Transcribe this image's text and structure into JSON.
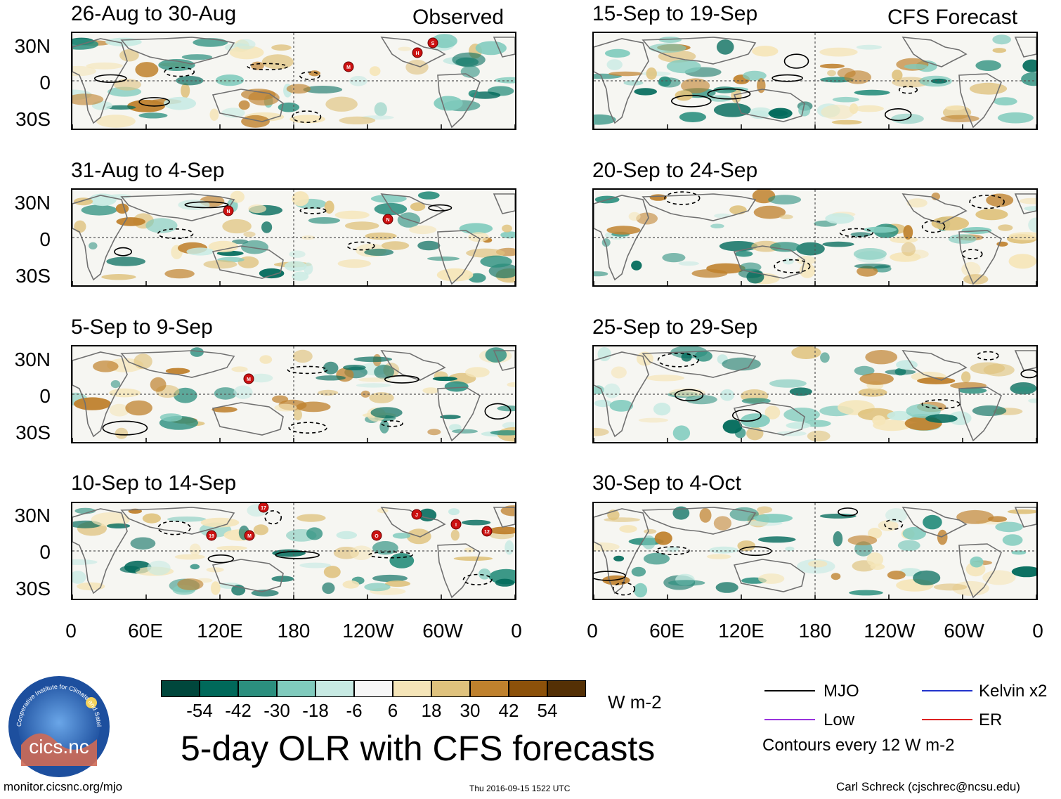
{
  "left_header": "Observed",
  "right_header": "CFS Forecast",
  "panels_left": [
    {
      "title": "26-Aug to 30-Aug"
    },
    {
      "title": "31-Aug to 4-Sep"
    },
    {
      "title": "5-Sep to 9-Sep"
    },
    {
      "title": "10-Sep to 14-Sep"
    }
  ],
  "panels_right": [
    {
      "title": "15-Sep to 19-Sep"
    },
    {
      "title": "20-Sep to 24-Sep"
    },
    {
      "title": "25-Sep to 29-Sep"
    },
    {
      "title": "30-Sep to 4-Oct"
    }
  ],
  "lat_labels": [
    "30N",
    "0",
    "30S"
  ],
  "lon_labels": [
    "0",
    "60E",
    "120E",
    "180",
    "120W",
    "60W",
    "0"
  ],
  "storm_markers": {
    "p0": [
      "M",
      "H",
      "S"
    ],
    "p1": [
      "N",
      "N"
    ],
    "p2": [
      "M"
    ],
    "p3": [
      "17",
      "19",
      "M",
      "O",
      "J",
      "I",
      "12"
    ]
  },
  "colorbar": {
    "colors": [
      "#00473c",
      "#00695a",
      "#2b8f7e",
      "#80cbbd",
      "#c7eae3",
      "#f7f7f7",
      "#f5e5b8",
      "#dfc27d",
      "#bf812d",
      "#8c510a",
      "#543005"
    ],
    "labels": [
      "-54",
      "-42",
      "-30",
      "-18",
      "-6",
      "6",
      "18",
      "30",
      "42",
      "54"
    ],
    "unit": "W m-2"
  },
  "legend": {
    "items": [
      {
        "label": "MJO",
        "color": "#000000"
      },
      {
        "label": "Kelvin x2",
        "color": "#2233cc"
      },
      {
        "label": "Low",
        "color": "#9933dd"
      },
      {
        "label": "ER",
        "color": "#dd2222"
      }
    ],
    "note": "Contours every 12 W m-2"
  },
  "logo": {
    "text": "cics.nc",
    "ring_text": "Cooperative Institute for Climate and Satellites"
  },
  "main_title": "5-day OLR with CFS forecasts",
  "footer": {
    "left": "monitor.cicsnc.org/mjo",
    "center": "Thu 2016-09-15 1522 UTC",
    "right": "Carl Schreck (cjschrec@ncsu.edu)"
  }
}
